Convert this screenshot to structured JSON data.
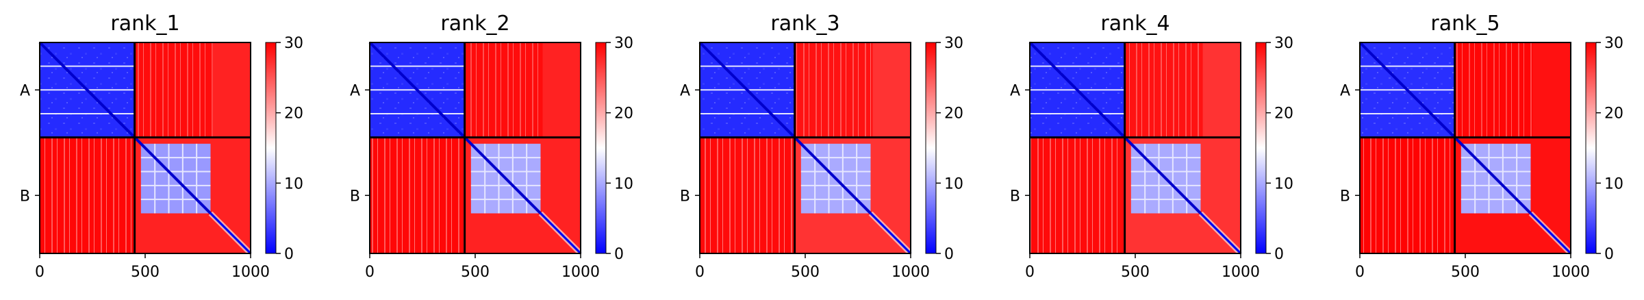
{
  "chart_data": {
    "type": "heatmap",
    "description_units": "predicted aligned error heatmap per model rank",
    "colormap": {
      "low": "#0000ff",
      "mid": "#ffffff",
      "high": "#ff0000"
    },
    "colorbar": {
      "range": [
        0,
        30
      ],
      "ticks": [
        0,
        10,
        20,
        30
      ]
    },
    "x_axis": {
      "range": [
        0,
        1000
      ],
      "ticks": [
        0,
        500,
        1000
      ]
    },
    "chain_boundary": 450,
    "chains": [
      {
        "label": "A",
        "start": 0,
        "end": 450
      },
      {
        "label": "B",
        "start": 450,
        "end": 1000
      }
    ],
    "panels": [
      {
        "title": "rank_1",
        "diag_blocks": [
          {
            "chain": "A",
            "range": [
              0,
              450
            ],
            "value": 4
          },
          {
            "chain": "B",
            "range": [
              480,
              810
            ],
            "value": 9
          }
        ],
        "offdiag_value": 28
      },
      {
        "title": "rank_2",
        "diag_blocks": [
          {
            "chain": "A",
            "range": [
              0,
              450
            ],
            "value": 4
          },
          {
            "chain": "B",
            "range": [
              480,
              810
            ],
            "value": 10
          }
        ],
        "offdiag_value": 28
      },
      {
        "title": "rank_3",
        "diag_blocks": [
          {
            "chain": "A",
            "range": [
              0,
              450
            ],
            "value": 4
          },
          {
            "chain": "B",
            "range": [
              480,
              810
            ],
            "value": 10
          }
        ],
        "offdiag_value": 27
      },
      {
        "title": "rank_4",
        "diag_blocks": [
          {
            "chain": "A",
            "range": [
              0,
              450
            ],
            "value": 4
          },
          {
            "chain": "B",
            "range": [
              480,
              810
            ],
            "value": 10
          }
        ],
        "offdiag_value": 27
      },
      {
        "title": "rank_5",
        "diag_blocks": [
          {
            "chain": "A",
            "range": [
              0,
              450
            ],
            "value": 5
          },
          {
            "chain": "B",
            "range": [
              480,
              810
            ],
            "value": 10
          }
        ],
        "offdiag_value": 29
      }
    ]
  }
}
